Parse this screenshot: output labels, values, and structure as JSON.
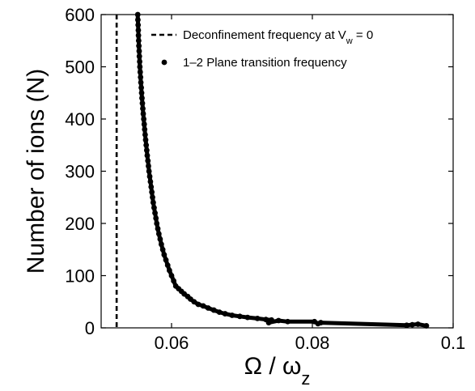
{
  "chart_data": {
    "type": "scatter",
    "xlabel": "Ω / ω_z",
    "xlabel_parts": {
      "main": "Ω / ω",
      "sub": "z"
    },
    "ylabel": "Number of ions (N)",
    "xlim": [
      0.05,
      0.1
    ],
    "ylim": [
      0,
      600
    ],
    "xticks": [
      0.06,
      0.08,
      0.1
    ],
    "xtick_labels": [
      "0.06",
      "0.08",
      "0.1"
    ],
    "yticks": [
      0,
      100,
      200,
      300,
      400,
      500,
      600
    ],
    "ytick_labels": [
      "0",
      "100",
      "200",
      "300",
      "400",
      "500",
      "600"
    ],
    "grid": false,
    "legend_position": "top-right",
    "legend": [
      {
        "label": "Deconfinement frequency at V_w = 0",
        "parts": {
          "a": "Deconfinement frequency at V",
          "sub": "w",
          "b": " = 0"
        },
        "style": "dashed-line"
      },
      {
        "label": "1–2 Plane transition frequency",
        "style": "dot"
      }
    ],
    "series": [
      {
        "kind": "vline",
        "x": 0.0522
      },
      {
        "kind": "scatter",
        "points": [
          [
            0.0552,
            600
          ],
          [
            0.05522,
            590
          ],
          [
            0.05525,
            580
          ],
          [
            0.05528,
            570
          ],
          [
            0.0553,
            560
          ],
          [
            0.05533,
            550
          ],
          [
            0.05536,
            540
          ],
          [
            0.0554,
            530
          ],
          [
            0.05543,
            520
          ],
          [
            0.05547,
            510
          ],
          [
            0.0555,
            500
          ],
          [
            0.05555,
            490
          ],
          [
            0.0556,
            480
          ],
          [
            0.05564,
            470
          ],
          [
            0.0557,
            460
          ],
          [
            0.05575,
            450
          ],
          [
            0.0558,
            440
          ],
          [
            0.05586,
            430
          ],
          [
            0.05592,
            420
          ],
          [
            0.05598,
            410
          ],
          [
            0.05605,
            400
          ],
          [
            0.05612,
            390
          ],
          [
            0.05618,
            380
          ],
          [
            0.05625,
            370
          ],
          [
            0.05632,
            360
          ],
          [
            0.0564,
            350
          ],
          [
            0.05648,
            340
          ],
          [
            0.05655,
            330
          ],
          [
            0.05664,
            320
          ],
          [
            0.05672,
            310
          ],
          [
            0.0568,
            300
          ],
          [
            0.0569,
            290
          ],
          [
            0.057,
            280
          ],
          [
            0.0571,
            270
          ],
          [
            0.0572,
            260
          ],
          [
            0.0573,
            250
          ],
          [
            0.0574,
            240
          ],
          [
            0.05752,
            230
          ],
          [
            0.05765,
            220
          ],
          [
            0.05778,
            210
          ],
          [
            0.0579,
            200
          ],
          [
            0.05805,
            190
          ],
          [
            0.0582,
            180
          ],
          [
            0.05838,
            170
          ],
          [
            0.05855,
            160
          ],
          [
            0.05875,
            150
          ],
          [
            0.05895,
            140
          ],
          [
            0.0592,
            130
          ],
          [
            0.05945,
            120
          ],
          [
            0.0597,
            110
          ],
          [
            0.06,
            100
          ],
          [
            0.0603,
            90
          ],
          [
            0.0606,
            80
          ],
          [
            0.061,
            75
          ],
          [
            0.0614,
            70
          ],
          [
            0.0618,
            65
          ],
          [
            0.0623,
            60
          ],
          [
            0.0627,
            55
          ],
          [
            0.0632,
            50
          ],
          [
            0.0638,
            45
          ],
          [
            0.0645,
            42
          ],
          [
            0.0652,
            38
          ],
          [
            0.066,
            34
          ],
          [
            0.0668,
            30
          ],
          [
            0.0676,
            27
          ],
          [
            0.0686,
            24
          ],
          [
            0.0697,
            22
          ],
          [
            0.0708,
            20
          ],
          [
            0.0722,
            18
          ],
          [
            0.0734,
            16
          ],
          [
            0.0742,
            15
          ],
          [
            0.0738,
            10
          ],
          [
            0.0752,
            14
          ],
          [
            0.0765,
            12
          ],
          [
            0.0803,
            12
          ],
          [
            0.0808,
            8
          ],
          [
            0.0812,
            10
          ],
          [
            0.0934,
            5
          ],
          [
            0.0942,
            6
          ],
          [
            0.095,
            7
          ],
          [
            0.0962,
            4
          ]
        ]
      }
    ]
  }
}
